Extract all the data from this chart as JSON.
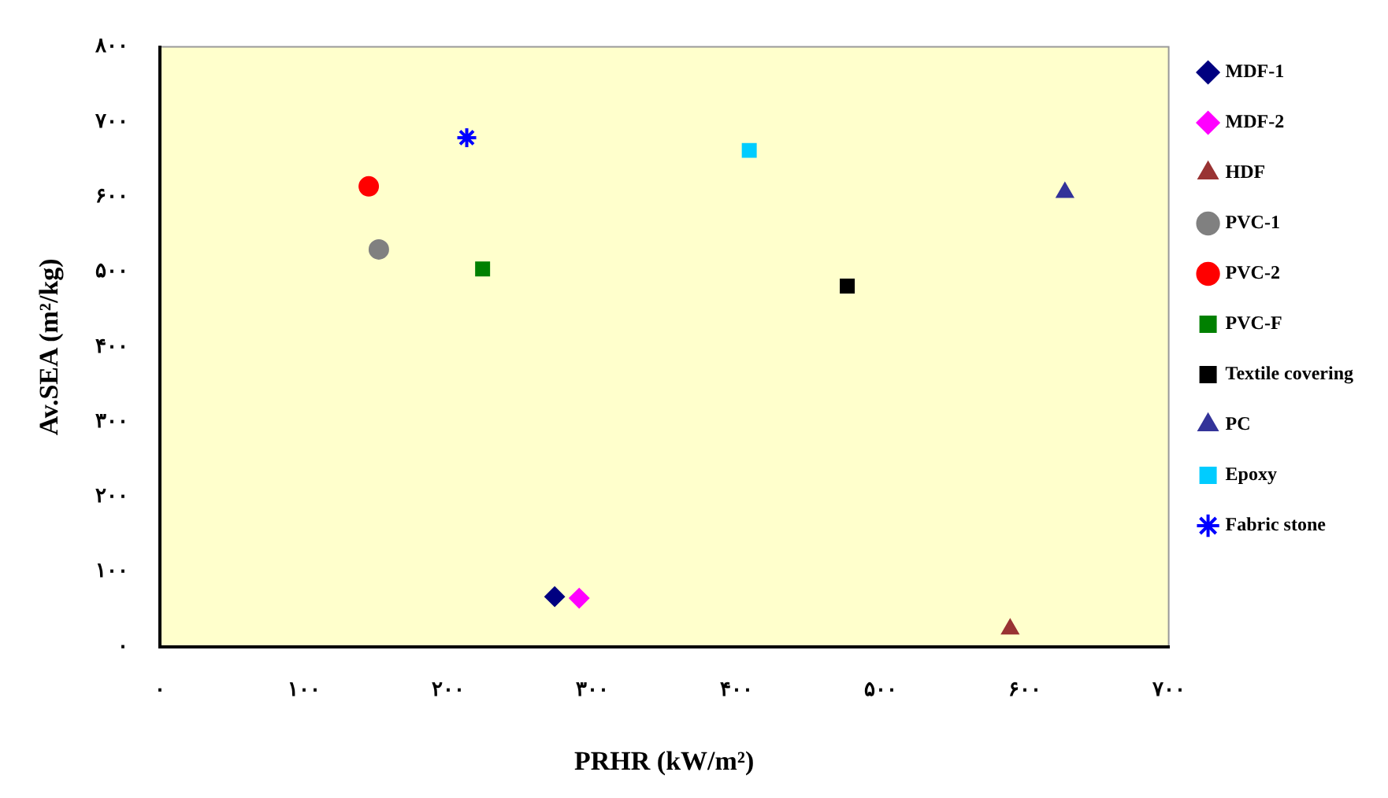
{
  "chart_data": {
    "type": "scatter",
    "xlabel": "PRHR (kW/m²)",
    "ylabel": "Av.SEA (m²/kg)",
    "xlim": [
      0,
      700
    ],
    "ylim": [
      0,
      800
    ],
    "xticks": [
      {
        "value": 0,
        "label": "۰"
      },
      {
        "value": 100,
        "label": "۱۰۰"
      },
      {
        "value": 200,
        "label": "۲۰۰"
      },
      {
        "value": 300,
        "label": "۳۰۰"
      },
      {
        "value": 400,
        "label": "۴۰۰"
      },
      {
        "value": 500,
        "label": "۵۰۰"
      },
      {
        "value": 600,
        "label": "۶۰۰"
      },
      {
        "value": 700,
        "label": "۷۰۰"
      }
    ],
    "yticks": [
      {
        "value": 0,
        "label": "۰"
      },
      {
        "value": 100,
        "label": "۱۰۰"
      },
      {
        "value": 200,
        "label": "۲۰۰"
      },
      {
        "value": 300,
        "label": "۳۰۰"
      },
      {
        "value": 400,
        "label": "۴۰۰"
      },
      {
        "value": 500,
        "label": "۵۰۰"
      },
      {
        "value": 600,
        "label": "۶۰۰"
      },
      {
        "value": 700,
        "label": "۷۰۰"
      },
      {
        "value": 800,
        "label": "۸۰۰"
      }
    ],
    "grid": false,
    "legend": "right",
    "series": [
      {
        "name": "MDF-1",
        "color": "#000080",
        "marker": "diamond",
        "x": [
          274
        ],
        "values": [
          67
        ]
      },
      {
        "name": "MDF-2",
        "color": "#ff00ff",
        "marker": "diamond",
        "x": [
          291
        ],
        "values": [
          65
        ]
      },
      {
        "name": "HDF",
        "color": "#993333",
        "marker": "triangle",
        "x": [
          590
        ],
        "values": [
          24
        ]
      },
      {
        "name": "PVC-1",
        "color": "#808080",
        "marker": "circle",
        "x": [
          152
        ],
        "values": [
          530
        ]
      },
      {
        "name": "PVC-2",
        "color": "#ff0000",
        "marker": "circle",
        "x": [
          145
        ],
        "values": [
          614
        ]
      },
      {
        "name": "PVC-F",
        "color": "#008000",
        "marker": "square",
        "x": [
          224
        ],
        "values": [
          504
        ]
      },
      {
        "name": "Textile covering",
        "color": "#000000",
        "marker": "square",
        "x": [
          477
        ],
        "values": [
          481
        ]
      },
      {
        "name": "PC",
        "color": "#333399",
        "marker": "triangle",
        "x": [
          628
        ],
        "values": [
          606
        ]
      },
      {
        "name": "Epoxy",
        "color": "#00ccff",
        "marker": "square",
        "x": [
          409
        ],
        "values": [
          662
        ]
      },
      {
        "name": "Fabric stone",
        "color": "#0000ff",
        "marker": "cross",
        "x": [
          213
        ],
        "values": [
          679
        ]
      }
    ]
  }
}
